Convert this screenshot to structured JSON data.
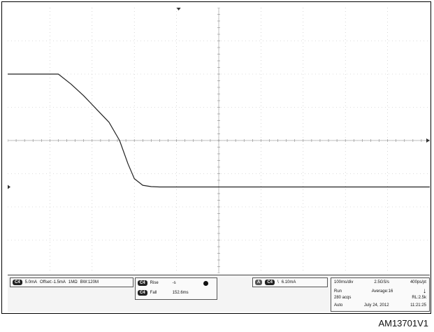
{
  "scope": {
    "ch4": {
      "label": "C4",
      "scale": "5.0mA",
      "offset": "Offset:-1.5mA",
      "impedance": "1MΩ",
      "bandwidth": "BW:120M"
    },
    "measurements": [
      {
        "channel": "C4",
        "name": "Rise",
        "value": "-s"
      },
      {
        "channel": "C4",
        "name": "Fall",
        "value": "152.6ms"
      }
    ],
    "trigger": {
      "mode": "A",
      "channel": "C4",
      "slope": "\\",
      "level": "6.10mA"
    },
    "timebase": {
      "per_div": "100ms/div",
      "sample_rate": "2.5GS/s",
      "resolution": "400ps/pt"
    },
    "acquisition": {
      "state": "Run",
      "mode": "Average:16",
      "acqs": "280 acqs",
      "record": "RL:2.5k"
    },
    "trigger_mode": {
      "mode": "Auto",
      "date": "July 24, 2012",
      "time": "11:21:25"
    }
  },
  "figure_id": "AM13701V1",
  "chart_data": {
    "type": "line",
    "x": [
      0,
      1.2,
      1.5,
      1.8,
      2.1,
      2.4,
      2.65,
      2.85,
      3.0,
      3.2,
      3.4,
      3.6,
      4.0,
      6.0,
      10.0
    ],
    "y": [
      2.0,
      2.0,
      1.7,
      1.35,
      0.95,
      0.55,
      0.0,
      -0.7,
      -1.15,
      -1.35,
      -1.39,
      -1.4,
      -1.4,
      -1.4,
      -1.4
    ],
    "xlim": [
      0,
      10
    ],
    "ylim": [
      -4,
      4
    ],
    "grid": true,
    "xlabel": "",
    "ylabel": "",
    "title": ""
  }
}
